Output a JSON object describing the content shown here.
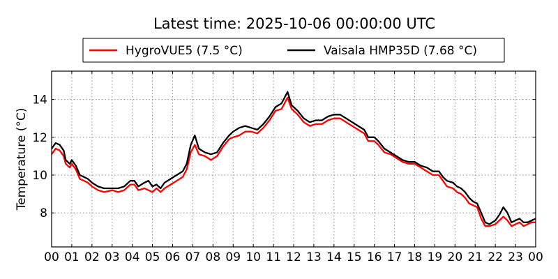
{
  "chart_data": {
    "type": "line",
    "title": "Latest time: 2025-10-06 00:00:00 UTC",
    "xlabel": "",
    "ylabel": "Temperature (°C)",
    "xlim": [
      0,
      24
    ],
    "ylim": [
      6.2,
      15.5
    ],
    "x_ticks": [
      "00",
      "01",
      "02",
      "03",
      "04",
      "05",
      "06",
      "07",
      "08",
      "09",
      "10",
      "11",
      "12",
      "13",
      "14",
      "15",
      "16",
      "17",
      "18",
      "19",
      "20",
      "21",
      "22",
      "23",
      "00"
    ],
    "y_ticks": [
      8,
      10,
      12,
      14
    ],
    "grid": true,
    "legend_position": "top",
    "series": [
      {
        "name": "HygroVUE5 (7.5 °C)",
        "color": "#ff0000",
        "points": [
          [
            0.0,
            11.1
          ],
          [
            0.2,
            11.4
          ],
          [
            0.4,
            11.3
          ],
          [
            0.6,
            11.0
          ],
          [
            0.7,
            10.6
          ],
          [
            0.9,
            10.4
          ],
          [
            1.0,
            10.6
          ],
          [
            1.2,
            10.3
          ],
          [
            1.4,
            9.8
          ],
          [
            1.6,
            9.7
          ],
          [
            1.8,
            9.6
          ],
          [
            2.0,
            9.4
          ],
          [
            2.3,
            9.2
          ],
          [
            2.6,
            9.1
          ],
          [
            3.0,
            9.2
          ],
          [
            3.3,
            9.1
          ],
          [
            3.6,
            9.2
          ],
          [
            3.9,
            9.5
          ],
          [
            4.1,
            9.5
          ],
          [
            4.3,
            9.2
          ],
          [
            4.6,
            9.3
          ],
          [
            4.8,
            9.2
          ],
          [
            5.0,
            9.1
          ],
          [
            5.2,
            9.3
          ],
          [
            5.4,
            9.1
          ],
          [
            5.6,
            9.3
          ],
          [
            5.9,
            9.5
          ],
          [
            6.2,
            9.7
          ],
          [
            6.5,
            9.9
          ],
          [
            6.7,
            10.3
          ],
          [
            6.9,
            11.2
          ],
          [
            7.1,
            11.6
          ],
          [
            7.3,
            11.1
          ],
          [
            7.6,
            11.0
          ],
          [
            7.9,
            10.8
          ],
          [
            8.2,
            11.0
          ],
          [
            8.5,
            11.5
          ],
          [
            8.8,
            11.9
          ],
          [
            9.0,
            12.0
          ],
          [
            9.3,
            12.1
          ],
          [
            9.6,
            12.3
          ],
          [
            9.9,
            12.3
          ],
          [
            10.2,
            12.2
          ],
          [
            10.5,
            12.5
          ],
          [
            10.8,
            12.9
          ],
          [
            11.1,
            13.4
          ],
          [
            11.4,
            13.5
          ],
          [
            11.6,
            13.9
          ],
          [
            11.7,
            14.1
          ],
          [
            11.9,
            13.5
          ],
          [
            12.2,
            13.2
          ],
          [
            12.5,
            12.8
          ],
          [
            12.8,
            12.6
          ],
          [
            13.1,
            12.7
          ],
          [
            13.4,
            12.7
          ],
          [
            13.7,
            12.9
          ],
          [
            14.0,
            13.0
          ],
          [
            14.3,
            13.0
          ],
          [
            14.6,
            12.8
          ],
          [
            14.9,
            12.6
          ],
          [
            15.2,
            12.4
          ],
          [
            15.5,
            12.2
          ],
          [
            15.7,
            11.8
          ],
          [
            16.0,
            11.8
          ],
          [
            16.2,
            11.6
          ],
          [
            16.5,
            11.2
          ],
          [
            16.8,
            11.1
          ],
          [
            17.1,
            10.9
          ],
          [
            17.4,
            10.7
          ],
          [
            17.7,
            10.6
          ],
          [
            18.0,
            10.6
          ],
          [
            18.3,
            10.4
          ],
          [
            18.6,
            10.2
          ],
          [
            18.9,
            10.0
          ],
          [
            19.2,
            10.0
          ],
          [
            19.4,
            9.7
          ],
          [
            19.6,
            9.4
          ],
          [
            19.9,
            9.3
          ],
          [
            20.1,
            9.1
          ],
          [
            20.3,
            9.0
          ],
          [
            20.5,
            8.8
          ],
          [
            20.7,
            8.5
          ],
          [
            20.9,
            8.4
          ],
          [
            21.1,
            8.3
          ],
          [
            21.3,
            7.7
          ],
          [
            21.5,
            7.3
          ],
          [
            21.7,
            7.3
          ],
          [
            22.0,
            7.4
          ],
          [
            22.2,
            7.6
          ],
          [
            22.4,
            7.8
          ],
          [
            22.6,
            7.6
          ],
          [
            22.8,
            7.3
          ],
          [
            23.0,
            7.4
          ],
          [
            23.2,
            7.5
          ],
          [
            23.4,
            7.3
          ],
          [
            23.6,
            7.4
          ],
          [
            23.8,
            7.5
          ],
          [
            24.0,
            7.5
          ]
        ]
      },
      {
        "name": "Vaisala HMP35D (7.68 °C)",
        "color": "#000000",
        "points": [
          [
            0.0,
            11.4
          ],
          [
            0.2,
            11.7
          ],
          [
            0.4,
            11.6
          ],
          [
            0.6,
            11.3
          ],
          [
            0.7,
            10.8
          ],
          [
            0.9,
            10.6
          ],
          [
            1.0,
            10.8
          ],
          [
            1.2,
            10.5
          ],
          [
            1.4,
            10.0
          ],
          [
            1.6,
            9.9
          ],
          [
            1.8,
            9.8
          ],
          [
            2.0,
            9.6
          ],
          [
            2.3,
            9.4
          ],
          [
            2.6,
            9.3
          ],
          [
            3.0,
            9.3
          ],
          [
            3.3,
            9.3
          ],
          [
            3.6,
            9.4
          ],
          [
            3.9,
            9.7
          ],
          [
            4.1,
            9.7
          ],
          [
            4.3,
            9.4
          ],
          [
            4.6,
            9.6
          ],
          [
            4.8,
            9.7
          ],
          [
            5.0,
            9.4
          ],
          [
            5.2,
            9.5
          ],
          [
            5.4,
            9.3
          ],
          [
            5.6,
            9.6
          ],
          [
            5.9,
            9.8
          ],
          [
            6.2,
            10.0
          ],
          [
            6.5,
            10.2
          ],
          [
            6.7,
            10.6
          ],
          [
            6.9,
            11.6
          ],
          [
            7.1,
            12.1
          ],
          [
            7.3,
            11.4
          ],
          [
            7.6,
            11.2
          ],
          [
            7.9,
            11.1
          ],
          [
            8.2,
            11.2
          ],
          [
            8.5,
            11.7
          ],
          [
            8.8,
            12.1
          ],
          [
            9.0,
            12.3
          ],
          [
            9.3,
            12.5
          ],
          [
            9.6,
            12.6
          ],
          [
            9.9,
            12.5
          ],
          [
            10.2,
            12.4
          ],
          [
            10.5,
            12.7
          ],
          [
            10.8,
            13.1
          ],
          [
            11.1,
            13.6
          ],
          [
            11.4,
            13.8
          ],
          [
            11.6,
            14.2
          ],
          [
            11.7,
            14.4
          ],
          [
            11.9,
            13.7
          ],
          [
            12.2,
            13.4
          ],
          [
            12.5,
            13.0
          ],
          [
            12.8,
            12.8
          ],
          [
            13.1,
            12.9
          ],
          [
            13.4,
            12.9
          ],
          [
            13.7,
            13.1
          ],
          [
            14.0,
            13.2
          ],
          [
            14.3,
            13.2
          ],
          [
            14.6,
            13.0
          ],
          [
            14.9,
            12.8
          ],
          [
            15.2,
            12.6
          ],
          [
            15.5,
            12.4
          ],
          [
            15.7,
            12.0
          ],
          [
            16.0,
            12.0
          ],
          [
            16.2,
            11.8
          ],
          [
            16.5,
            11.4
          ],
          [
            16.8,
            11.2
          ],
          [
            17.1,
            11.0
          ],
          [
            17.4,
            10.8
          ],
          [
            17.7,
            10.7
          ],
          [
            18.0,
            10.7
          ],
          [
            18.3,
            10.5
          ],
          [
            18.6,
            10.4
          ],
          [
            18.9,
            10.2
          ],
          [
            19.2,
            10.2
          ],
          [
            19.4,
            9.9
          ],
          [
            19.6,
            9.7
          ],
          [
            19.9,
            9.6
          ],
          [
            20.1,
            9.4
          ],
          [
            20.3,
            9.3
          ],
          [
            20.5,
            9.1
          ],
          [
            20.7,
            8.8
          ],
          [
            20.9,
            8.6
          ],
          [
            21.1,
            8.5
          ],
          [
            21.3,
            8.0
          ],
          [
            21.5,
            7.5
          ],
          [
            21.7,
            7.4
          ],
          [
            22.0,
            7.6
          ],
          [
            22.2,
            7.9
          ],
          [
            22.4,
            8.3
          ],
          [
            22.6,
            8.0
          ],
          [
            22.8,
            7.5
          ],
          [
            23.0,
            7.6
          ],
          [
            23.2,
            7.7
          ],
          [
            23.4,
            7.5
          ],
          [
            23.6,
            7.5
          ],
          [
            23.8,
            7.6
          ],
          [
            24.0,
            7.7
          ]
        ]
      }
    ]
  }
}
